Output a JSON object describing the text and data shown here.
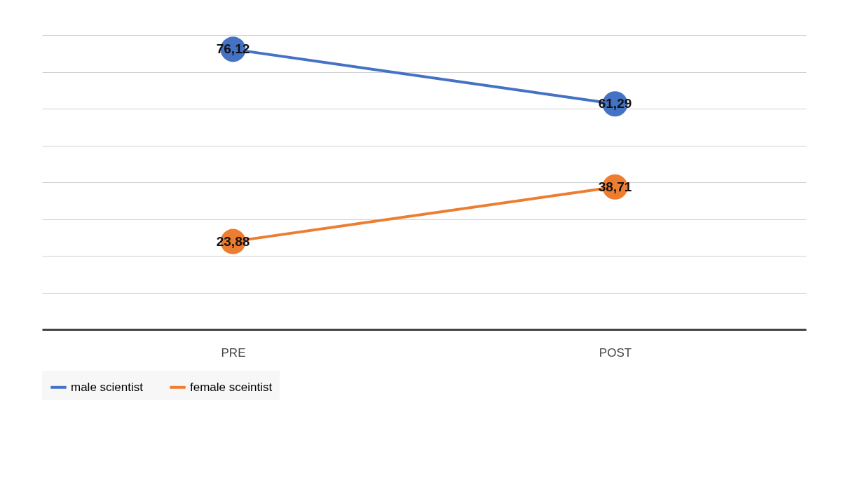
{
  "chart_data": {
    "type": "line",
    "categories": [
      "PRE",
      "POST"
    ],
    "series": [
      {
        "name": "male scientist",
        "color": "#4472c4",
        "values": [
          76.12,
          61.29
        ],
        "value_labels": [
          "76,12",
          "61,29"
        ]
      },
      {
        "name": "female sceintist",
        "color": "#ed7d31",
        "values": [
          23.88,
          38.71
        ],
        "value_labels": [
          "23,88",
          "38,71"
        ]
      }
    ],
    "ylim": [
      0,
      80
    ],
    "yticks": [
      {
        "value": 0,
        "label": null
      },
      {
        "value": 10,
        "label": null
      },
      {
        "value": 20,
        "label": null
      },
      {
        "value": 30,
        "label": null
      },
      {
        "value": 40,
        "label": null
      },
      {
        "value": 50,
        "label": null
      },
      {
        "value": 60,
        "label": null
      },
      {
        "value": 70,
        "label": null
      },
      {
        "value": 80,
        "label": null
      }
    ],
    "grid": "y",
    "legend": "bottom",
    "tick_labels": "x",
    "marker": "circle",
    "line_style": "solid"
  }
}
